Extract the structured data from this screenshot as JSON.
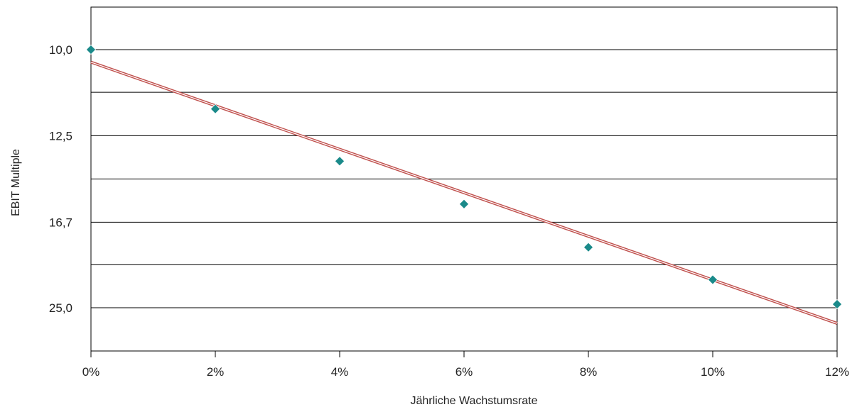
{
  "chart_data": {
    "type": "scatter",
    "title": "",
    "xlabel": "Jährliche Wachstumsrate",
    "ylabel": "EBIT Multiple",
    "y_scale": "reciprocal",
    "y_axis_inverted": true,
    "xlim": [
      0,
      12
    ],
    "x_ticks": [
      0,
      2,
      4,
      6,
      8,
      10,
      12
    ],
    "x_tick_labels": [
      "0%",
      "2%",
      "4%",
      "6%",
      "8%",
      "10%",
      "12%"
    ],
    "y_ticks_labeled": [
      10.0,
      12.5,
      16.7,
      25.0
    ],
    "y_tick_labels": [
      "10,0",
      "12,5",
      "16,7",
      "25,0"
    ],
    "y_gridlines": [
      10.0,
      11.1,
      12.5,
      14.3,
      16.7,
      20.0,
      25.0
    ],
    "grid": "horizontal",
    "legend": "none",
    "series": [
      {
        "kind": "points",
        "marker": "diamond",
        "color": "#1a8a8a",
        "x": [
          0,
          2,
          4,
          6,
          8,
          10,
          12
        ],
        "y": [
          10.0,
          11.6,
          13.5,
          15.6,
          18.5,
          21.5,
          24.5
        ]
      },
      {
        "kind": "trendline",
        "color": "#c0504d",
        "x": [
          0,
          12
        ],
        "y": [
          10.3,
          27.5
        ]
      }
    ],
    "colors": {
      "frame": "#000000",
      "grid": "#000000",
      "marker": "#1a8a8a",
      "trend": "#c0504d"
    }
  }
}
